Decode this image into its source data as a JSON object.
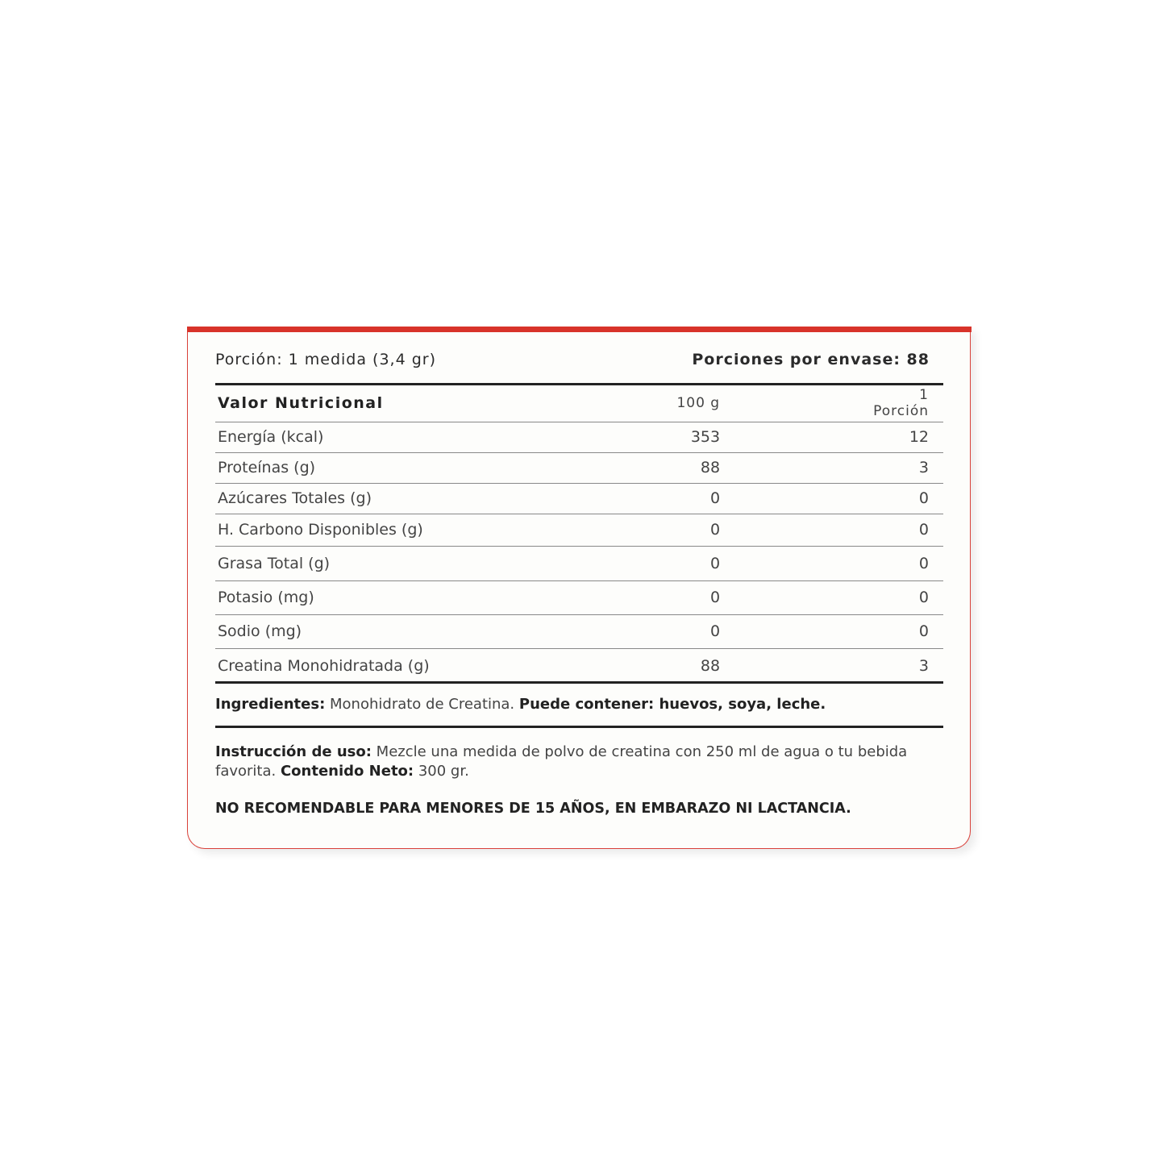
{
  "colors": {
    "accent": "#d8332a",
    "text": "#2b2b2b"
  },
  "portion": {
    "left": "Porción: 1 medida (3,4 gr)",
    "right": "Porciones por envase: 88"
  },
  "table": {
    "headers": [
      "Valor Nutricional",
      "100 g",
      "1 Porción"
    ],
    "rows": [
      [
        "Energía (kcal)",
        "353",
        "12"
      ],
      [
        "Proteínas (g)",
        "88",
        "3"
      ],
      [
        "Azúcares Totales (g)",
        "0",
        "0"
      ],
      [
        "H. Carbono Disponibles (g)",
        "0",
        "0"
      ],
      [
        "Grasa Total (g)",
        "0",
        "0"
      ],
      [
        "Potasio (mg)",
        "0",
        "0"
      ],
      [
        "Sodio (mg)",
        "0",
        "0"
      ],
      [
        "Creatina Monohidratada (g)",
        "88",
        "3"
      ]
    ]
  },
  "ingredients": {
    "label": "Ingredientes:",
    "text": " Monohidrato de Creatina. ",
    "label2": "Puede contener: huevos, soya, leche."
  },
  "instructions": {
    "label": "Instrucción de uso:",
    "text": " Mezcle una medida de polvo de creatina con 250 ml de agua o tu bebida favorita. ",
    "label2": "Contenido Neto:",
    "text2": " 300 gr."
  },
  "warning": "NO RECOMENDABLE PARA MENORES DE 15 AÑOS, EN EMBARAZO NI LACTANCIA."
}
